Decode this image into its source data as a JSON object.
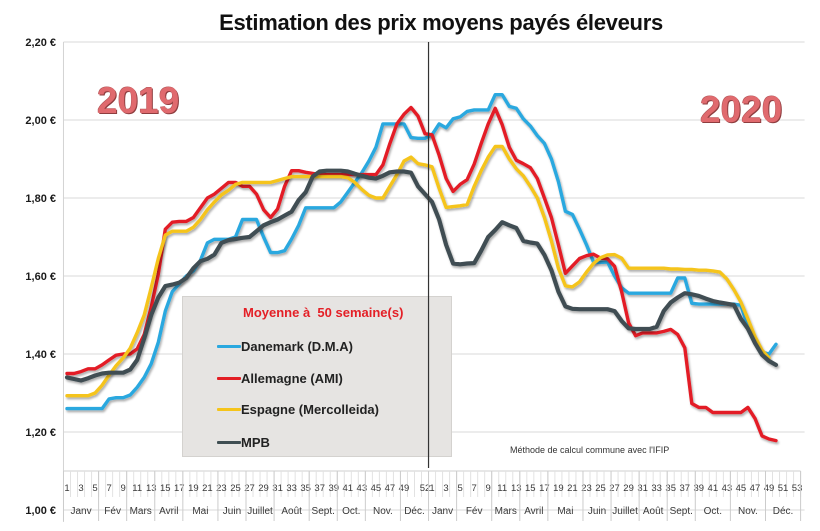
{
  "chart_data": {
    "type": "line",
    "title": "Estimation des prix moyens payés éleveurs",
    "xlabel": "",
    "ylabel": "",
    "ylim": [
      1.0,
      2.2
    ],
    "grid": true,
    "y_ticks": [
      {
        "value": 1.0,
        "label": "1,00 €"
      },
      {
        "value": 1.2,
        "label": "1,20 €"
      },
      {
        "value": 1.4,
        "label": "1,40 €"
      },
      {
        "value": 1.6,
        "label": "1,60 €"
      },
      {
        "value": 1.8,
        "label": "1,80 €"
      },
      {
        "value": 2.0,
        "label": "2,00 €"
      },
      {
        "value": 2.2,
        "label": "2,20 €"
      }
    ],
    "x_axis": {
      "crosses_at": 1.1,
      "unit": "semaine",
      "years": [
        {
          "year": "2019",
          "weeks": 52,
          "tick_labels": [
            1,
            3,
            5,
            7,
            9,
            11,
            13,
            15,
            17,
            19,
            21,
            23,
            25,
            27,
            29,
            31,
            33,
            35,
            37,
            39,
            41,
            43,
            45,
            47,
            49,
            52
          ],
          "months": [
            {
              "label": "Janv",
              "weeks": 5
            },
            {
              "label": "Fév",
              "weeks": 4
            },
            {
              "label": "Mars",
              "weeks": 4
            },
            {
              "label": "Avril",
              "weeks": 4
            },
            {
              "label": "Mai",
              "weeks": 5
            },
            {
              "label": "Juin",
              "weeks": 4
            },
            {
              "label": "Juillet",
              "weeks": 4
            },
            {
              "label": "Août",
              "weeks": 5
            },
            {
              "label": "Sept.",
              "weeks": 4
            },
            {
              "label": "Oct.",
              "weeks": 4
            },
            {
              "label": "Nov.",
              "weeks": 5
            },
            {
              "label": "Déc.",
              "weeks": 4
            }
          ]
        },
        {
          "year": "2020",
          "weeks": 53,
          "tick_labels": [
            1,
            3,
            5,
            7,
            9,
            11,
            13,
            15,
            17,
            19,
            21,
            23,
            25,
            27,
            29,
            31,
            33,
            35,
            37,
            39,
            41,
            43,
            45,
            47,
            49,
            51,
            53
          ],
          "months": [
            {
              "label": "Janv",
              "weeks": 4
            },
            {
              "label": "Fév",
              "weeks": 5
            },
            {
              "label": "Mars",
              "weeks": 4
            },
            {
              "label": "Avril",
              "weeks": 4
            },
            {
              "label": "Mai",
              "weeks": 5
            },
            {
              "label": "Juin",
              "weeks": 4
            },
            {
              "label": "Juillet",
              "weeks": 4
            },
            {
              "label": "Août",
              "weeks": 4
            },
            {
              "label": "Sept.",
              "weeks": 4
            },
            {
              "label": "Oct.",
              "weeks": 5
            },
            {
              "label": "Nov.",
              "weeks": 5
            },
            {
              "label": "Déc.",
              "weeks": 5
            }
          ]
        }
      ]
    },
    "values_start": "2019 semaine 1",
    "series": [
      {
        "name": "Danemark (D.M.A)",
        "color": "#2aa8df",
        "values": [
          1.26,
          1.26,
          1.26,
          1.26,
          1.26,
          1.26,
          1.285,
          1.288,
          1.288,
          1.295,
          1.315,
          1.34,
          1.375,
          1.43,
          1.51,
          1.56,
          1.58,
          1.6,
          1.613,
          1.64,
          1.685,
          1.694,
          1.694,
          1.694,
          1.7,
          1.745,
          1.745,
          1.745,
          1.7,
          1.66,
          1.66,
          1.665,
          1.695,
          1.73,
          1.775,
          1.775,
          1.775,
          1.775,
          1.775,
          1.79,
          1.815,
          1.84,
          1.865,
          1.895,
          1.93,
          1.99,
          1.99,
          1.99,
          1.99,
          1.955,
          1.953,
          1.953,
          1.962,
          1.99,
          1.98,
          2.003,
          2.008,
          2.022,
          2.026,
          2.026,
          2.026,
          2.065,
          2.065,
          2.035,
          2.03,
          2.003,
          1.985,
          1.96,
          1.94,
          1.9,
          1.842,
          1.766,
          1.758,
          1.72,
          1.68,
          1.636,
          1.635,
          1.636,
          1.6,
          1.57,
          1.556,
          1.556,
          1.556,
          1.556,
          1.556,
          1.556,
          1.556,
          1.595,
          1.595,
          1.53,
          1.528,
          1.528,
          1.528,
          1.528,
          1.528,
          1.528,
          1.525,
          1.47,
          1.434,
          1.405,
          1.4,
          1.425
        ]
      },
      {
        "name": "Allemagne (AMI)",
        "color": "#e31e25",
        "values": [
          1.35,
          1.35,
          1.355,
          1.362,
          1.362,
          1.372,
          1.385,
          1.397,
          1.4,
          1.4,
          1.413,
          1.45,
          1.52,
          1.605,
          1.72,
          1.738,
          1.74,
          1.74,
          1.75,
          1.775,
          1.8,
          1.81,
          1.825,
          1.84,
          1.84,
          1.83,
          1.83,
          1.81,
          1.77,
          1.75,
          1.772,
          1.83,
          1.87,
          1.87,
          1.866,
          1.863,
          1.86,
          1.86,
          1.86,
          1.86,
          1.86,
          1.86,
          1.86,
          1.86,
          1.86,
          1.885,
          1.94,
          1.99,
          2.015,
          2.032,
          2.01,
          1.965,
          1.962,
          1.91,
          1.85,
          1.817,
          1.835,
          1.847,
          1.887,
          1.94,
          1.99,
          2.03,
          1.988,
          1.93,
          1.897,
          1.888,
          1.878,
          1.85,
          1.8,
          1.75,
          1.68,
          1.607,
          1.626,
          1.645,
          1.652,
          1.656,
          1.646,
          1.644,
          1.625,
          1.56,
          1.48,
          1.447,
          1.454,
          1.454,
          1.454,
          1.458,
          1.463,
          1.45,
          1.416,
          1.273,
          1.263,
          1.263,
          1.25,
          1.25,
          1.25,
          1.25,
          1.25,
          1.263,
          1.235,
          1.19,
          1.182,
          1.178
        ]
      },
      {
        "name": "Espagne (Mercolleida)",
        "color": "#f5c41a",
        "values": [
          1.293,
          1.293,
          1.293,
          1.293,
          1.3,
          1.32,
          1.346,
          1.37,
          1.39,
          1.415,
          1.455,
          1.5,
          1.57,
          1.645,
          1.705,
          1.715,
          1.715,
          1.715,
          1.725,
          1.745,
          1.77,
          1.79,
          1.808,
          1.82,
          1.835,
          1.84,
          1.84,
          1.84,
          1.84,
          1.84,
          1.845,
          1.85,
          1.855,
          1.855,
          1.855,
          1.855,
          1.855,
          1.855,
          1.855,
          1.855,
          1.852,
          1.84,
          1.822,
          1.807,
          1.8,
          1.8,
          1.83,
          1.86,
          1.895,
          1.905,
          1.888,
          1.885,
          1.88,
          1.825,
          1.776,
          1.778,
          1.78,
          1.783,
          1.83,
          1.87,
          1.905,
          1.932,
          1.932,
          1.9,
          1.875,
          1.857,
          1.83,
          1.8,
          1.75,
          1.69,
          1.62,
          1.575,
          1.572,
          1.585,
          1.61,
          1.632,
          1.647,
          1.654,
          1.655,
          1.646,
          1.62,
          1.62,
          1.62,
          1.62,
          1.62,
          1.62,
          1.618,
          1.618,
          1.617,
          1.617,
          1.615,
          1.615,
          1.613,
          1.61,
          1.592,
          1.565,
          1.533,
          1.49,
          1.445,
          1.41,
          1.39
        ]
      },
      {
        "name": "MPB",
        "color": "#3f4e52",
        "values": [
          1.34,
          1.336,
          1.332,
          1.338,
          1.345,
          1.35,
          1.352,
          1.352,
          1.352,
          1.36,
          1.385,
          1.44,
          1.5,
          1.545,
          1.574,
          1.578,
          1.583,
          1.595,
          1.62,
          1.638,
          1.644,
          1.655,
          1.685,
          1.692,
          1.695,
          1.698,
          1.7,
          1.715,
          1.73,
          1.738,
          1.745,
          1.755,
          1.765,
          1.795,
          1.815,
          1.855,
          1.868,
          1.87,
          1.87,
          1.87,
          1.868,
          1.862,
          1.857,
          1.852,
          1.85,
          1.857,
          1.866,
          1.868,
          1.868,
          1.865,
          1.83,
          1.81,
          1.79,
          1.745,
          1.68,
          1.632,
          1.63,
          1.632,
          1.633,
          1.665,
          1.7,
          1.718,
          1.738,
          1.73,
          1.723,
          1.69,
          1.686,
          1.683,
          1.654,
          1.615,
          1.56,
          1.522,
          1.516,
          1.515,
          1.515,
          1.515,
          1.515,
          1.515,
          1.51,
          1.485,
          1.466,
          1.464,
          1.464,
          1.464,
          1.47,
          1.51,
          1.532,
          1.545,
          1.556,
          1.553,
          1.549,
          1.542,
          1.536,
          1.532,
          1.529,
          1.526,
          1.49,
          1.465,
          1.428,
          1.398,
          1.382,
          1.372
        ]
      }
    ],
    "legend": {
      "title": "Moyenne à  50 semaine(s)",
      "placement": "bottom-left"
    },
    "annotations": {
      "year_left": "2019",
      "year_right": "2020",
      "note": "Méthode de calcul commune avec l'IFIP",
      "year_separator": "vertical line between 2019 week 52 and 2020 week 1"
    }
  },
  "colors": {
    "year_label": "#e06a6e",
    "legend_title": "#e41f26",
    "legend_background": "#e6e4e2",
    "gridline": "#d9d9d9",
    "separator": "#333333"
  }
}
